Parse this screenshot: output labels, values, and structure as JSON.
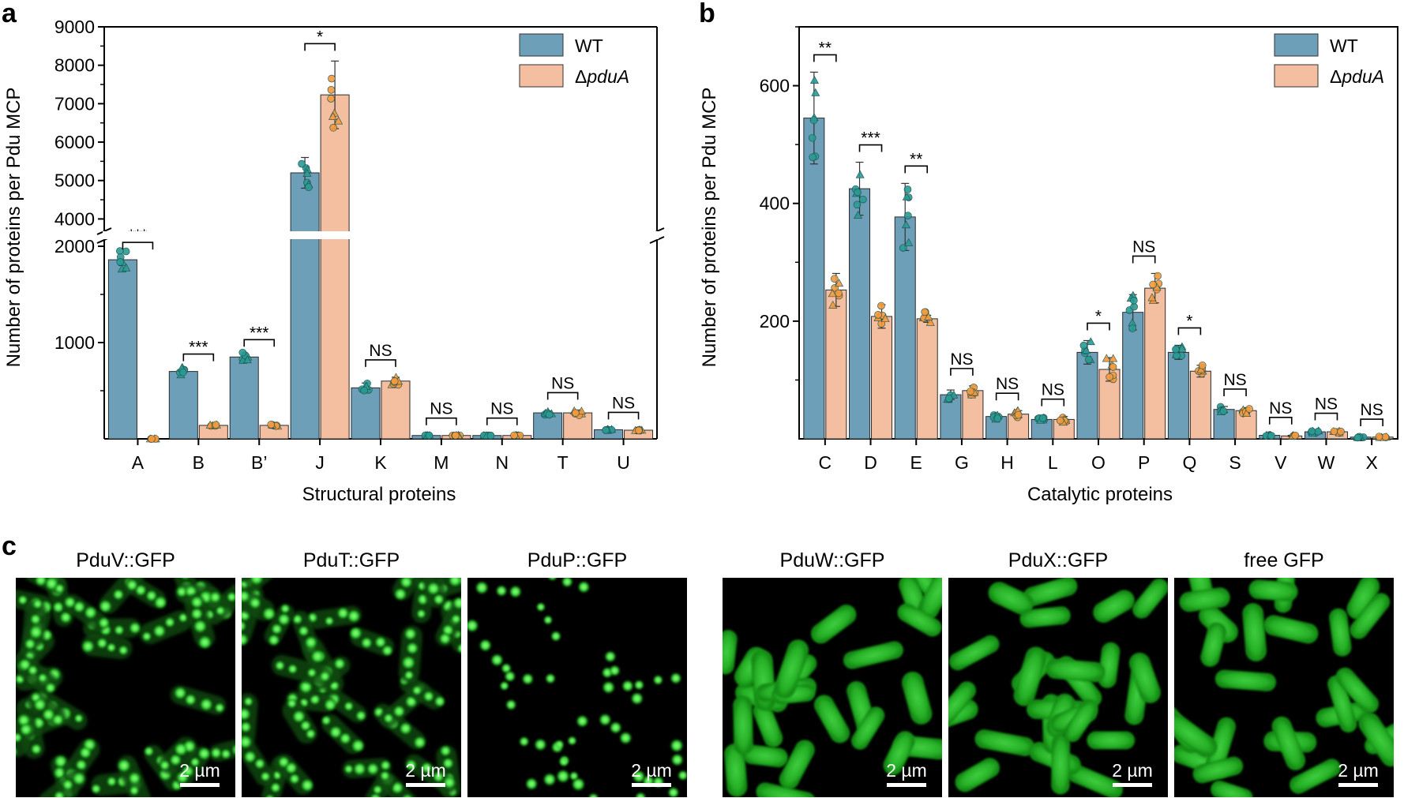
{
  "panels": {
    "a": "a",
    "b": "b",
    "c": "c"
  },
  "chart_data": [
    {
      "id": "a",
      "type": "bar",
      "xlabel": "Structural proteins",
      "ylabel": "Number of proteins per Pdu MCP",
      "categories": [
        "A",
        "B",
        "B’",
        "J",
        "K",
        "M",
        "N",
        "T",
        "U"
      ],
      "series": [
        {
          "name": "WT",
          "color": "#6e9fb8",
          "values": [
            1860,
            700,
            850,
            5200,
            530,
            35,
            35,
            270,
            95
          ]
        },
        {
          "name": "ΔpduA",
          "color": "#f4bfa0",
          "values": [
            0,
            140,
            140,
            7230,
            600,
            35,
            35,
            270,
            90
          ]
        }
      ],
      "errors": {
        "WT": [
          0,
          0,
          0,
          400,
          50,
          0,
          0,
          20,
          0
        ],
        "ΔpduA": [
          0,
          0,
          0,
          880,
          40,
          0,
          0,
          30,
          0
        ]
      },
      "yaxis": {
        "broken": true,
        "lower_range": [
          0,
          2000
        ],
        "upper_range": [
          3700,
          9000
        ],
        "lower_ticks": [
          "1000",
          "2000"
        ],
        "upper_ticks": [
          "4000",
          "5000",
          "6000",
          "7000",
          "8000",
          "9000"
        ]
      },
      "significance": [
        "***",
        "***",
        "***",
        "*",
        "NS",
        "NS",
        "NS",
        "NS",
        "NS"
      ],
      "legend": {
        "placement": "top-right",
        "wt": "WT",
        "delta": "Δ",
        "mutant": "pduA"
      }
    },
    {
      "id": "b",
      "type": "bar",
      "xlabel": "Catalytic proteins",
      "ylabel": "Number of proteins per Pdu MCP",
      "categories": [
        "C",
        "D",
        "E",
        "G",
        "H",
        "L",
        "O",
        "P",
        "Q",
        "S",
        "V",
        "W",
        "X"
      ],
      "series": [
        {
          "name": "WT",
          "color": "#6e9fb8",
          "values": [
            545,
            425,
            377,
            75,
            38,
            33,
            147,
            215,
            147,
            50,
            6,
            12,
            3
          ]
        },
        {
          "name": "ΔpduA",
          "color": "#f4bfa0",
          "values": [
            253,
            208,
            204,
            82,
            42,
            33,
            118,
            256,
            115,
            48,
            5,
            12,
            3
          ]
        }
      ],
      "errors": {
        "WT": [
          78,
          45,
          57,
          8,
          5,
          3,
          20,
          30,
          12,
          5,
          1,
          2,
          1
        ],
        "ΔpduA": [
          28,
          20,
          6,
          8,
          6,
          5,
          20,
          25,
          10,
          5,
          1,
          2,
          1
        ]
      },
      "ylim": [
        0,
        700
      ],
      "yticks": [
        "200",
        "400",
        "600"
      ],
      "significance": [
        "**",
        "***",
        "**",
        "NS",
        "NS",
        "NS",
        "*",
        "NS",
        "*",
        "NS",
        "NS",
        "NS",
        "NS"
      ],
      "legend": {
        "placement": "top-right",
        "wt": "WT",
        "delta": "Δ",
        "mutant": "pduA"
      }
    }
  ],
  "micrographs": [
    {
      "label": "PduV::GFP",
      "scale": "2 µm",
      "pattern": "punctate"
    },
    {
      "label": "PduT::GFP",
      "scale": "2 µm",
      "pattern": "punctate"
    },
    {
      "label": "PduP::GFP",
      "scale": "2 µm",
      "pattern": "punctate-sparse"
    },
    {
      "label": "PduW::GFP",
      "scale": "2 µm",
      "pattern": "diffuse"
    },
    {
      "label": "PduX::GFP",
      "scale": "2 µm",
      "pattern": "diffuse"
    },
    {
      "label": "free GFP",
      "scale": "2 µm",
      "pattern": "diffuse"
    }
  ]
}
